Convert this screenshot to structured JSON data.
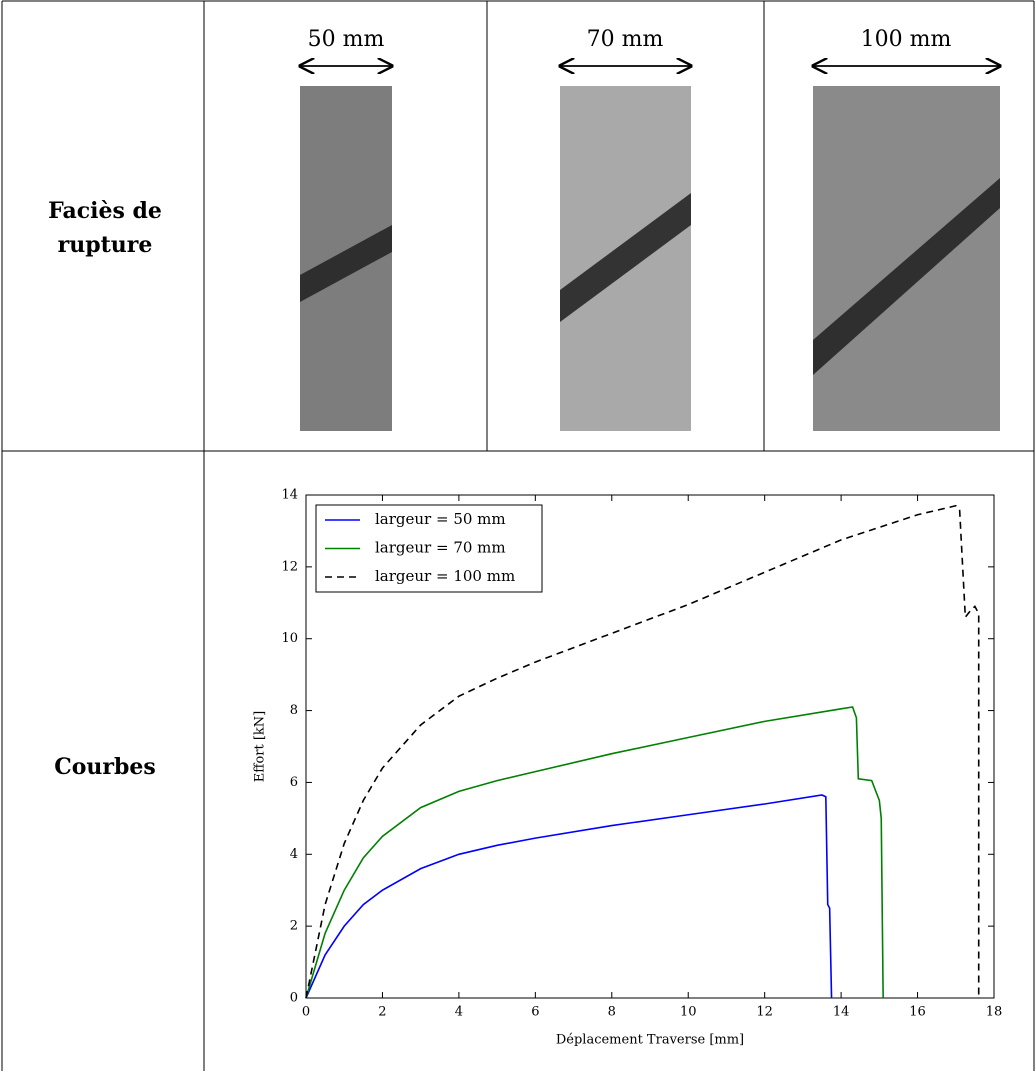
{
  "table": {
    "rows": [
      {
        "label": "Faciès de rupture",
        "widths": [
          "50 mm",
          "70 mm",
          "100 mm"
        ]
      },
      {
        "label": "Courbes"
      }
    ]
  },
  "chart_data": {
    "type": "line",
    "x_label": "Déplacement Traverse [mm]",
    "y_label": "Effort [kN]",
    "xlim": [
      0,
      18
    ],
    "ylim": [
      0,
      14
    ],
    "xticks": [
      0,
      2,
      4,
      6,
      8,
      10,
      12,
      14,
      16,
      18
    ],
    "yticks": [
      0,
      2,
      4,
      6,
      8,
      10,
      12,
      14
    ],
    "legend": "upper left",
    "series": [
      {
        "name": "largeur = 50 mm",
        "color": "#0000ff",
        "dash": false,
        "x": [
          0,
          0.5,
          1,
          1.5,
          2,
          3,
          4,
          5,
          6,
          8,
          10,
          12,
          13.5,
          13.6,
          13.65,
          13.7,
          13.75
        ],
        "values": [
          0,
          1.2,
          2.0,
          2.6,
          3.0,
          3.6,
          4.0,
          4.25,
          4.45,
          4.8,
          5.1,
          5.4,
          5.65,
          5.6,
          2.6,
          2.5,
          0
        ]
      },
      {
        "name": "largeur = 70 mm",
        "color": "#008000",
        "dash": false,
        "x": [
          0,
          0.5,
          1,
          1.5,
          2,
          3,
          4,
          5,
          6,
          8,
          10,
          12,
          14,
          14.3,
          14.4,
          14.45,
          14.8,
          15,
          15.05,
          15.1
        ],
        "values": [
          0,
          1.8,
          3.0,
          3.9,
          4.5,
          5.3,
          5.75,
          6.05,
          6.3,
          6.8,
          7.25,
          7.7,
          8.05,
          8.1,
          7.8,
          6.1,
          6.05,
          5.5,
          5.0,
          0
        ]
      },
      {
        "name": "largeur = 100 mm",
        "color": "#000000",
        "dash": true,
        "x": [
          0,
          0.5,
          1,
          1.5,
          2,
          3,
          4,
          5,
          6,
          8,
          10,
          12,
          14,
          16,
          17,
          17.1,
          17.25,
          17.4,
          17.5,
          17.6,
          17.6
        ],
        "values": [
          0,
          2.6,
          4.3,
          5.5,
          6.4,
          7.6,
          8.4,
          8.9,
          9.35,
          10.15,
          10.95,
          11.85,
          12.75,
          13.45,
          13.7,
          13.6,
          10.6,
          10.8,
          10.9,
          10.7,
          0
        ]
      }
    ]
  }
}
